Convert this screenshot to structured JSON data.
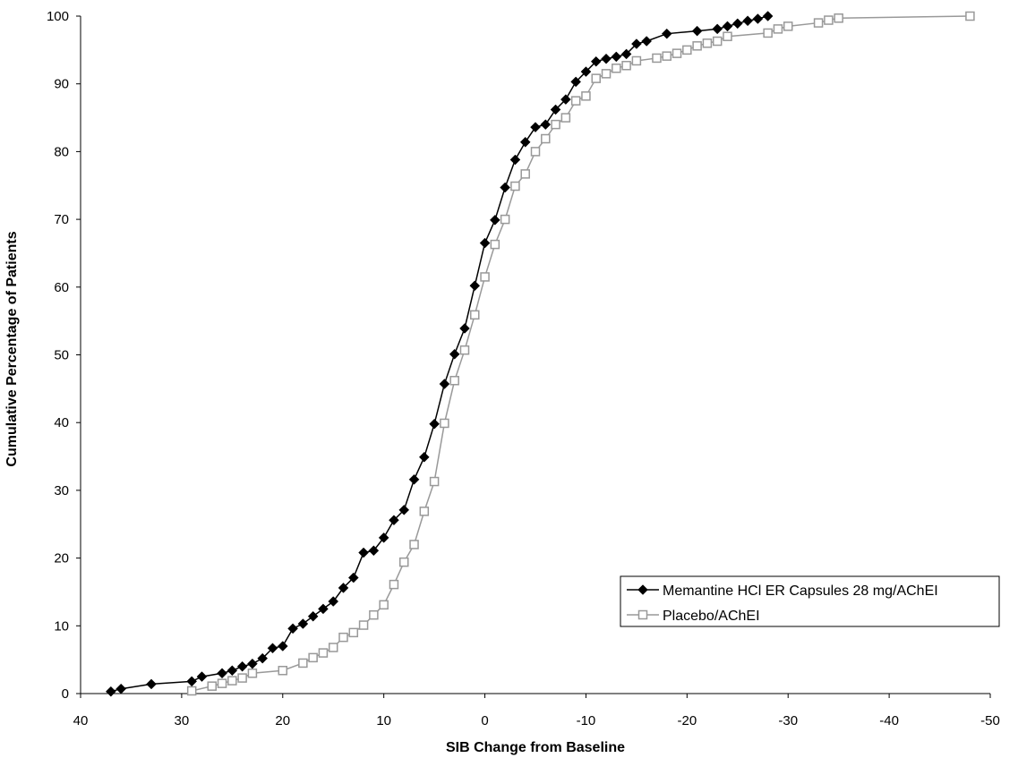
{
  "chart_data": {
    "type": "line",
    "title": "",
    "xlabel": "SIB Change from Baseline",
    "ylabel": "Cumulative Percentage of Patients",
    "xlim": [
      40,
      -50
    ],
    "ylim": [
      0,
      100
    ],
    "x_axis_reversed": true,
    "x_ticks": [
      40,
      30,
      20,
      10,
      0,
      -10,
      -20,
      -30,
      -40,
      -50
    ],
    "x_tick_labels": [
      "40",
      "30",
      "20",
      "10",
      "0",
      "-10",
      "-20",
      "-30",
      "-40",
      "-50"
    ],
    "y_ticks": [
      0,
      10,
      20,
      30,
      40,
      50,
      60,
      70,
      80,
      90,
      100
    ],
    "y_tick_labels": [
      "0",
      "10",
      "20",
      "30",
      "40",
      "50",
      "60",
      "70",
      "80",
      "90",
      "100"
    ],
    "grid": false,
    "legend_position": "bottom-right",
    "series": [
      {
        "name": "Memantine HCl ER Capsules 28 mg/AChEI",
        "color": "#000000",
        "marker": "filled-diamond",
        "x": [
          37,
          36,
          33,
          29,
          28,
          26,
          25,
          24,
          23,
          22,
          21,
          20,
          19,
          18,
          17,
          16,
          15,
          14,
          13,
          12,
          11,
          10,
          9,
          8,
          7,
          6,
          5,
          4,
          3,
          2,
          1,
          0,
          -1,
          -2,
          -3,
          -4,
          -5,
          -6,
          -7,
          -8,
          -9,
          -10,
          -11,
          -12,
          -13,
          -14,
          -15,
          -16,
          -18,
          -21,
          -23,
          -24,
          -25,
          -26,
          -27,
          -28
        ],
        "y": [
          0.3,
          0.7,
          1.4,
          1.8,
          2.5,
          3.0,
          3.4,
          4.0,
          4.4,
          5.2,
          6.7,
          7.0,
          9.6,
          10.3,
          11.4,
          12.5,
          13.6,
          15.6,
          17.1,
          20.8,
          21.1,
          23.0,
          25.6,
          27.1,
          31.6,
          34.9,
          39.8,
          45.7,
          50.1,
          53.9,
          60.2,
          66.5,
          69.9,
          74.7,
          78.8,
          81.4,
          83.6,
          84.0,
          86.2,
          87.7,
          90.3,
          91.8,
          93.3,
          93.7,
          94.0,
          94.4,
          95.9,
          96.3,
          97.4,
          97.8,
          98.1,
          98.5,
          98.9,
          99.3,
          99.6,
          100
        ]
      },
      {
        "name": "Placebo/AChEI",
        "color": "#999999",
        "marker": "open-square",
        "x": [
          29,
          27,
          26,
          25,
          24,
          23,
          20,
          18,
          17,
          16,
          15,
          14,
          13,
          12,
          11,
          10,
          9,
          8,
          7,
          6,
          5,
          4,
          3,
          2,
          1,
          0,
          -1,
          -2,
          -3,
          -4,
          -5,
          -6,
          -7,
          -8,
          -9,
          -10,
          -11,
          -12,
          -13,
          -14,
          -15,
          -17,
          -18,
          -19,
          -20,
          -21,
          -22,
          -23,
          -24,
          -28,
          -29,
          -30,
          -33,
          -34,
          -35,
          -48
        ],
        "y": [
          0.4,
          1.1,
          1.5,
          1.9,
          2.3,
          3.0,
          3.4,
          4.5,
          5.3,
          6.0,
          6.8,
          8.3,
          9.0,
          10.1,
          11.6,
          13.1,
          16.1,
          19.4,
          22.0,
          26.9,
          31.3,
          39.9,
          46.2,
          50.7,
          55.9,
          61.5,
          66.3,
          70.0,
          74.9,
          76.7,
          80.0,
          81.9,
          84.0,
          85.0,
          87.5,
          88.2,
          90.8,
          91.5,
          92.3,
          92.7,
          93.4,
          93.8,
          94.1,
          94.5,
          95.0,
          95.6,
          96.0,
          96.3,
          97.0,
          97.5,
          98.1,
          98.5,
          99.0,
          99.4,
          99.7,
          100
        ]
      }
    ]
  }
}
